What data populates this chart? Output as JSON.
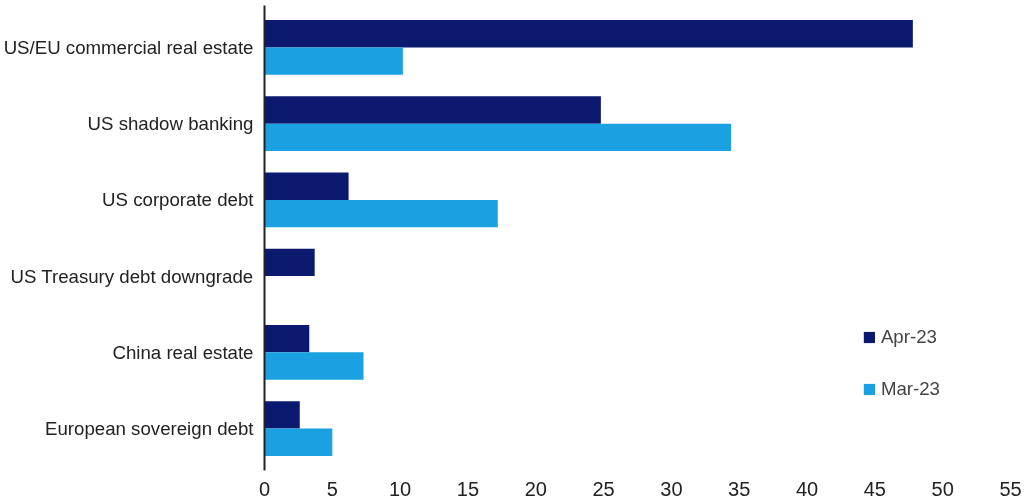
{
  "chart_data": {
    "type": "bar",
    "orientation": "horizontal",
    "categories": [
      "US/EU commercial real estate",
      "US shadow banking",
      "US corporate debt",
      "US Treasury debt downgrade",
      "China real estate",
      "European sovereign debt"
    ],
    "series": [
      {
        "name": "Apr-23",
        "color": "#0b1a6e",
        "values": [
          47.8,
          24.8,
          6.2,
          3.7,
          3.3,
          2.6
        ]
      },
      {
        "name": "Mar-23",
        "color": "#1ba1e2",
        "values": [
          10.2,
          34.4,
          17.2,
          null,
          7.3,
          5.0
        ]
      }
    ],
    "xlim": [
      0,
      55
    ],
    "xticks": [
      0,
      5,
      10,
      15,
      20,
      25,
      30,
      35,
      40,
      45,
      50,
      55
    ],
    "grid": false,
    "legend": "bottom right"
  }
}
